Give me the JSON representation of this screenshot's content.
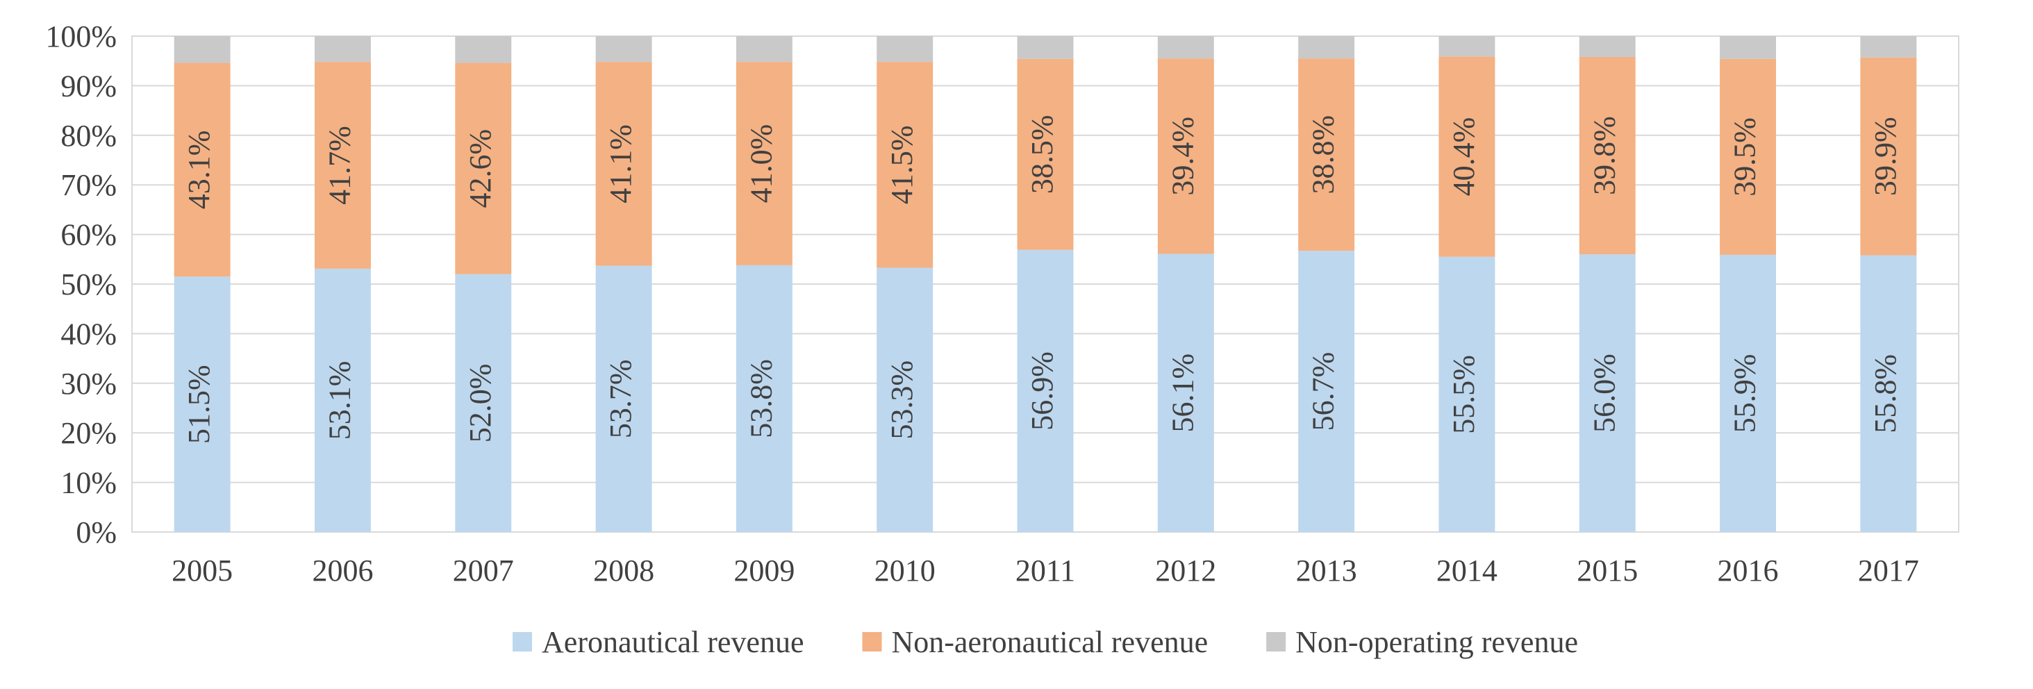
{
  "chart_data": {
    "type": "bar",
    "stacked": true,
    "title": "",
    "xlabel": "",
    "ylabel": "",
    "categories": [
      "2005",
      "2006",
      "2007",
      "2008",
      "2009",
      "2010",
      "2011",
      "2012",
      "2013",
      "2014",
      "2015",
      "2016",
      "2017"
    ],
    "series": [
      {
        "name": "Aeronautical revenue",
        "color": "#BDD7EE",
        "values": [
          51.5,
          53.1,
          52.0,
          53.7,
          53.8,
          53.3,
          56.9,
          56.1,
          56.7,
          55.5,
          56.0,
          55.9,
          55.8
        ],
        "labels": [
          "51.5%",
          "53.1%",
          "52.0%",
          "53.7%",
          "53.8%",
          "53.3%",
          "56.9%",
          "56.1%",
          "56.7%",
          "55.5%",
          "56.0%",
          "55.9%",
          "55.8%"
        ]
      },
      {
        "name": "Non-aeronautical revenue",
        "color": "#F4B183",
        "values": [
          43.1,
          41.7,
          42.6,
          41.1,
          41.0,
          41.5,
          38.5,
          39.4,
          38.8,
          40.4,
          39.8,
          39.5,
          39.9
        ],
        "labels": [
          "43.1%",
          "41.7%",
          "42.6%",
          "41.1%",
          "41.0%",
          "41.5%",
          "38.5%",
          "39.4%",
          "38.8%",
          "40.4%",
          "39.8%",
          "39.5%",
          "39.9%"
        ]
      },
      {
        "name": "Non-operating revenue",
        "color": "#C9C9C9",
        "values": [
          5.4,
          5.2,
          5.4,
          5.2,
          5.2,
          5.2,
          4.6,
          4.5,
          4.5,
          4.1,
          4.2,
          4.6,
          4.3
        ]
      }
    ],
    "ylim": [
      0,
      100
    ],
    "yticks": [
      "0%",
      "10%",
      "20%",
      "30%",
      "40%",
      "50%",
      "60%",
      "70%",
      "80%",
      "90%",
      "100%"
    ],
    "grid": true,
    "legend_position": "bottom"
  }
}
